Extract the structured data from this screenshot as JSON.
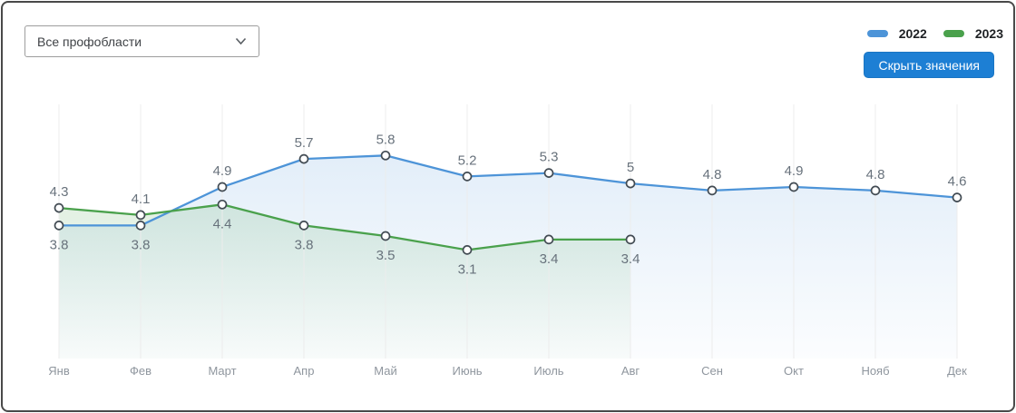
{
  "filter": {
    "value": "Все профобласти"
  },
  "legend": {
    "items": [
      {
        "label": "2022",
        "color": "#4d94d8"
      },
      {
        "label": "2023",
        "color": "#4aa14c"
      }
    ]
  },
  "toolbar": {
    "hide_values_label": "Скрыть значения",
    "button_color": "#1d7fd4"
  },
  "chart_data": {
    "type": "line",
    "title": "",
    "xlabel": "",
    "ylabel": "",
    "categories": [
      "Янв",
      "Фев",
      "Март",
      "Апр",
      "Май",
      "Июнь",
      "Июль",
      "Авг",
      "Сен",
      "Окт",
      "Нояб",
      "Дек"
    ],
    "series": [
      {
        "name": "2022",
        "color": "#4d94d8",
        "values": [
          3.8,
          3.8,
          4.9,
          5.7,
          5.8,
          5.2,
          5.3,
          5,
          4.8,
          4.9,
          4.8,
          4.6
        ]
      },
      {
        "name": "2023",
        "color": "#4aa14c",
        "values": [
          4.3,
          4.1,
          4.4,
          3.8,
          3.5,
          3.1,
          3.4,
          3.4,
          null,
          null,
          null,
          null
        ]
      }
    ],
    "ylim": [
      0,
      7
    ],
    "grid": "vertical-only",
    "legend_position": "top-right",
    "value_labels_visible": true,
    "area_fill": true,
    "value_label_color": "#68727c",
    "axis_label_color": "#8f969e",
    "marker_style": "open-circle"
  }
}
